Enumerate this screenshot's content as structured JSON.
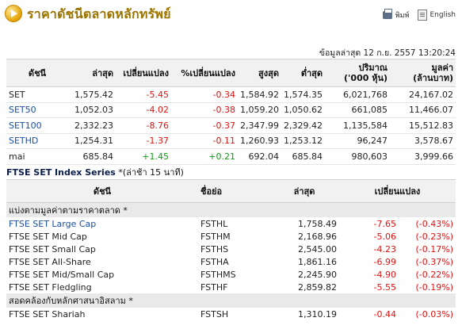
{
  "header": {
    "title": "ราคาดัชนีตลาดหลักทรัพย์",
    "print_label": "พิมพ์",
    "lang_label": "English"
  },
  "timestamp": "ข้อมูลล่าสุด 12 ก.ย. 2557 13:20:24",
  "main_table": {
    "columns": {
      "index": "ดัชนี",
      "last": "ล่าสุด",
      "change": "เปลี่ยนแปลง",
      "pct_change": "%เปลี่ยนแปลง",
      "high": "สูงสุด",
      "low": "ต่ำสุด",
      "volume_1": "ปริมาณ",
      "volume_2": "('000 หุ้น)",
      "value_1": "มูลค่า",
      "value_2": "(ล้านบาท)"
    },
    "rows": [
      {
        "name": "SET",
        "last": "1,575.42",
        "change": "-5.45",
        "pct": "-0.34",
        "high": "1,584.92",
        "low": "1,574.35",
        "volume": "6,021,768",
        "value": "24,167.02"
      },
      {
        "name": "SET50",
        "last": "1,052.03",
        "change": "-4.02",
        "pct": "-0.38",
        "high": "1,059.20",
        "low": "1,050.62",
        "volume": "661,085",
        "value": "11,466.07"
      },
      {
        "name": "SET100",
        "last": "2,332.23",
        "change": "-8.76",
        "pct": "-0.37",
        "high": "2,347.99",
        "low": "2,329.42",
        "volume": "1,135,584",
        "value": "15,512.83"
      },
      {
        "name": "SETHD",
        "last": "1,254.31",
        "change": "-1.37",
        "pct": "-0.11",
        "high": "1,260.93",
        "low": "1,253.12",
        "volume": "96,247",
        "value": "3,578.67"
      },
      {
        "name": "mai",
        "last": "685.84",
        "change": "+1.45",
        "pct": "+0.21",
        "high": "692.04",
        "low": "685.84",
        "volume": "980,603",
        "value": "3,999.66"
      }
    ]
  },
  "ftse": {
    "title": "FTSE SET Index Series",
    "note": "*(ล่าช้า 15 นาที)",
    "columns": {
      "index": "ดัชนี",
      "symbol": "ชื่อย่อ",
      "last": "ล่าสุด",
      "change": "เปลี่ยนแปลง"
    },
    "group1": "แบ่งตามมูลค่าตามราคาตลาด *",
    "group1_rows": [
      {
        "name": "FTSE SET Large Cap",
        "symbol": "FSTHL",
        "last": "1,758.49",
        "change": "-7.65",
        "pct": "(-0.43%)"
      },
      {
        "name": "FTSE SET Mid Cap",
        "symbol": "FSTHM",
        "last": "2,168.96",
        "change": "-5.06",
        "pct": "(-0.23%)"
      },
      {
        "name": "FTSE SET Small Cap",
        "symbol": "FSTHS",
        "last": "2,545.00",
        "change": "-4.23",
        "pct": "(-0.17%)"
      },
      {
        "name": "FTSE SET All-Share",
        "symbol": "FSTHA",
        "last": "1,861.16",
        "change": "-6.99",
        "pct": "(-0.37%)"
      },
      {
        "name": "FTSE SET Mid/Small Cap",
        "symbol": "FSTHMS",
        "last": "2,245.90",
        "change": "-4.90",
        "pct": "(-0.22%)"
      },
      {
        "name": "FTSE SET Fledgling",
        "symbol": "FSTHF",
        "last": "2,859.82",
        "change": "-5.55",
        "pct": "(-0.19%)"
      }
    ],
    "group2": "สอดคล้องกับหลักศาสนาอิสลาม *",
    "group2_rows": [
      {
        "name": "FTSE SET Shariah",
        "symbol": "FSTSH",
        "last": "1,310.19",
        "change": "-0.44",
        "pct": "(-0.03%)"
      }
    ]
  }
}
